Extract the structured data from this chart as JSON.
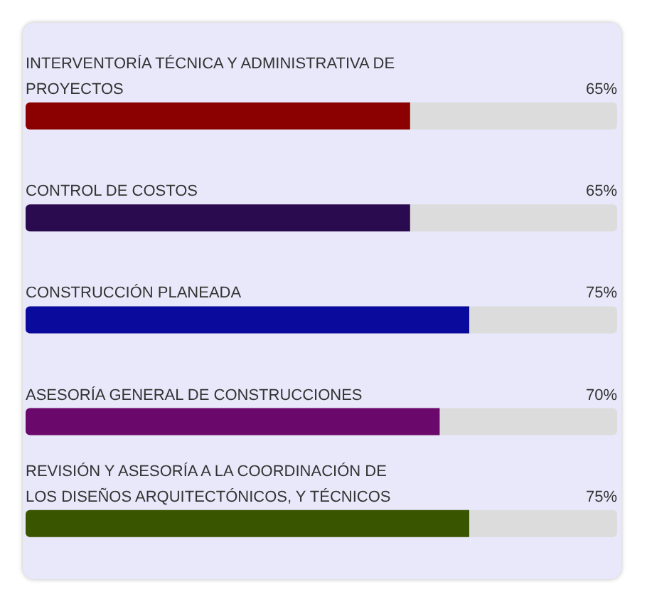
{
  "chart_data": {
    "type": "bar",
    "orientation": "horizontal",
    "categories": [
      "INTERVENTORÍA TÉCNICA Y ADMINISTRATIVA DE PROYECTOS",
      "CONTROL DE COSTOS",
      "CONSTRUCCIÓN PLANEADA",
      "ASESORÍA GENERAL DE CONSTRUCCIONES",
      "REVISIÓN Y ASESORÍA A LA COORDINACIÓN DE LOS DISEÑOS ARQUITECTÓNICOS, Y TÉCNICOS"
    ],
    "values": [
      65,
      65,
      75,
      70,
      75
    ],
    "value_labels": [
      "65%",
      "65%",
      "75%",
      "70%",
      "75%"
    ],
    "colors": [
      "#8b0000",
      "#2b0b4f",
      "#0a0a9c",
      "#6b086b",
      "#3a5500"
    ],
    "xlim": [
      0,
      100
    ],
    "tick_labels": false,
    "legend": false
  }
}
